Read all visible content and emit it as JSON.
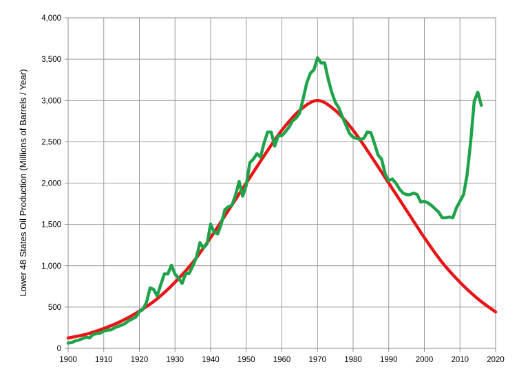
{
  "chart_data": {
    "type": "line",
    "title": "",
    "xlabel": "",
    "ylabel": "Lower 48 States Oil Production (Millions of Barrels / Year)",
    "xlim": [
      1900,
      2020
    ],
    "ylim": [
      0,
      4000
    ],
    "grid": true,
    "legend": "none",
    "x_ticks": [
      1900,
      1910,
      1920,
      1930,
      1940,
      1950,
      1960,
      1970,
      1980,
      1990,
      2000,
      2010,
      2020
    ],
    "x_tick_labels": [
      "1900",
      "1910",
      "1920",
      "1930",
      "1940",
      "1950",
      "1960",
      "1970",
      "1980",
      "1990",
      "2000",
      "2010",
      "2020"
    ],
    "y_ticks": [
      0,
      500,
      1000,
      1500,
      2000,
      2500,
      3000,
      3500,
      4000
    ],
    "y_tick_labels": [
      "0",
      "500",
      "1,000",
      "1,500",
      "2,000",
      "2,500",
      "3,000",
      "3,500",
      "4,000"
    ],
    "series": [
      {
        "color": "#e81416",
        "kind": "smooth-curve",
        "x": [
          1900,
          1905,
          1910,
          1915,
          1920,
          1925,
          1930,
          1935,
          1940,
          1945,
          1950,
          1955,
          1960,
          1965,
          1970,
          1975,
          1980,
          1985,
          1990,
          1995,
          2000,
          2005,
          2010,
          2015,
          2020
        ],
        "y": [
          125,
          170,
          240,
          330,
          450,
          600,
          800,
          1040,
          1340,
          1670,
          2000,
          2330,
          2640,
          2880,
          3000,
          2880,
          2640,
          2330,
          2000,
          1670,
          1340,
          1040,
          800,
          600,
          440
        ]
      },
      {
        "color": "#1fa34a",
        "kind": "jagged-line",
        "x": [
          1900,
          1901,
          1902,
          1903,
          1904,
          1905,
          1906,
          1907,
          1908,
          1909,
          1910,
          1911,
          1912,
          1913,
          1914,
          1915,
          1916,
          1917,
          1918,
          1919,
          1920,
          1921,
          1922,
          1923,
          1924,
          1925,
          1926,
          1927,
          1928,
          1929,
          1930,
          1931,
          1932,
          1933,
          1934,
          1935,
          1936,
          1937,
          1938,
          1939,
          1940,
          1941,
          1942,
          1943,
          1944,
          1945,
          1946,
          1947,
          1948,
          1949,
          1950,
          1951,
          1952,
          1953,
          1954,
          1955,
          1956,
          1957,
          1958,
          1959,
          1960,
          1961,
          1962,
          1963,
          1964,
          1965,
          1966,
          1967,
          1968,
          1969,
          1970,
          1971,
          1972,
          1973,
          1974,
          1975,
          1976,
          1977,
          1978,
          1979,
          1980,
          1981,
          1982,
          1983,
          1984,
          1985,
          1986,
          1987,
          1988,
          1989,
          1990,
          1991,
          1992,
          1993,
          1994,
          1995,
          1996,
          1997,
          1998,
          1999,
          2000,
          2001,
          2002,
          2003,
          2004,
          2005,
          2006,
          2007,
          2008,
          2009,
          2010,
          2011,
          2012,
          2013,
          2014,
          2015,
          2016
        ],
        "y": [
          63,
          70,
          90,
          100,
          117,
          135,
          126,
          166,
          179,
          183,
          209,
          220,
          223,
          248,
          265,
          281,
          300,
          335,
          355,
          378,
          443,
          472,
          557,
          732,
          714,
          634,
          771,
          901,
          901,
          1007,
          898,
          851,
          785,
          906,
          908,
          997,
          1099,
          1279,
          1214,
          1265,
          1503,
          1404,
          1386,
          1506,
          1678,
          1714,
          1733,
          1857,
          2020,
          1842,
          1974,
          2248,
          2290,
          2357,
          2315,
          2484,
          2617,
          2617,
          2449,
          2575,
          2575,
          2622,
          2676,
          2753,
          2787,
          2848,
          3027,
          3215,
          3329,
          3372,
          3517,
          3454,
          3455,
          3261,
          3100,
          2978,
          2910,
          2800,
          2700,
          2600,
          2556,
          2540,
          2530,
          2540,
          2620,
          2610,
          2480,
          2340,
          2290,
          2110,
          2030,
          2050,
          2000,
          1930,
          1880,
          1860,
          1860,
          1880,
          1860,
          1770,
          1780,
          1760,
          1730,
          1690,
          1650,
          1580,
          1580,
          1590,
          1580,
          1700,
          1780,
          1860,
          2100,
          2500,
          2990,
          3100,
          2940
        ]
      }
    ]
  }
}
